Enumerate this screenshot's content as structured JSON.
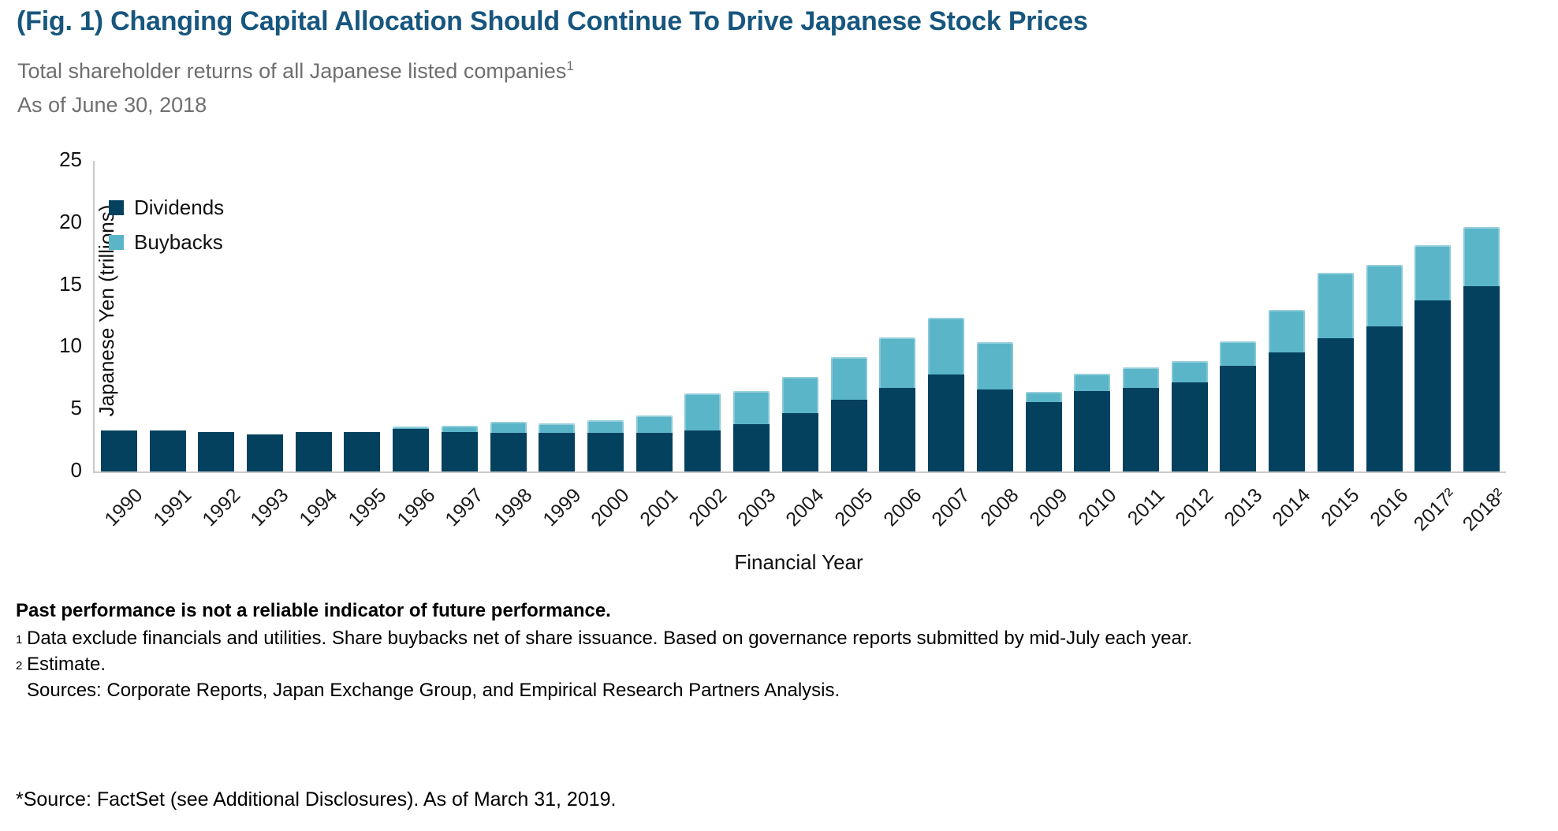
{
  "header": {
    "title": "(Fig. 1) Changing Capital Allocation Should Continue To Drive Japanese Stock Prices",
    "subtitle_text": "Total shareholder returns of all Japanese listed companies",
    "subtitle_marker": "1",
    "as_of": "As of June 30, 2018"
  },
  "chart_data": {
    "type": "bar",
    "stacked": true,
    "title": "",
    "xlabel": "Financial Year",
    "ylabel": "Japanese Yen (trillions)",
    "ylim": [
      0,
      25
    ],
    "yticks": [
      0,
      5,
      10,
      15,
      20,
      25
    ],
    "grid": false,
    "legend_position": "inside top-left",
    "categories": [
      "1990",
      "1991",
      "1992",
      "1993",
      "1994",
      "1995",
      "1996",
      "1997",
      "1998",
      "1999",
      "2000",
      "2001",
      "2002",
      "2003",
      "2004",
      "2005",
      "2006",
      "2007",
      "2008",
      "2009",
      "2010",
      "2011",
      "2012",
      "2013",
      "2014",
      "2015",
      "2016",
      "2017²",
      "2018²"
    ],
    "series": [
      {
        "name": "Dividends",
        "color": "#04415f",
        "values": [
          3.3,
          3.3,
          3.2,
          3.0,
          3.2,
          3.2,
          3.4,
          3.2,
          3.1,
          3.1,
          3.1,
          3.1,
          3.3,
          3.8,
          4.7,
          5.8,
          6.7,
          7.8,
          6.6,
          5.6,
          6.5,
          6.7,
          7.2,
          8.5,
          9.6,
          10.7,
          11.7,
          13.8,
          14.9
        ]
      },
      {
        "name": "Buybacks",
        "color": "#5bb5c8",
        "values": [
          0,
          0,
          0,
          0,
          0,
          0,
          0.2,
          0.5,
          0.9,
          0.8,
          1.0,
          1.4,
          3.0,
          2.7,
          2.9,
          3.4,
          4.1,
          4.6,
          3.8,
          0.8,
          1.4,
          1.7,
          1.7,
          2.0,
          3.4,
          5.3,
          4.9,
          4.4,
          4.8
        ]
      }
    ],
    "axis_color": "#c9c9c9"
  },
  "footnotes": {
    "warning": "Past performance is not a reliable indicator of future performance.",
    "items": [
      {
        "marker": "1",
        "text": "Data exclude financials and utilities. Share buybacks net of share issuance. Based on governance reports submitted by mid-July each year."
      },
      {
        "marker": "2",
        "text": "Estimate."
      }
    ],
    "sources": "Sources: Corporate Reports, Japan Exchange Group, and Empirical Research Partners Analysis."
  },
  "source_line": "*Source: FactSet (see Additional Disclosures). As of March 31, 2019."
}
